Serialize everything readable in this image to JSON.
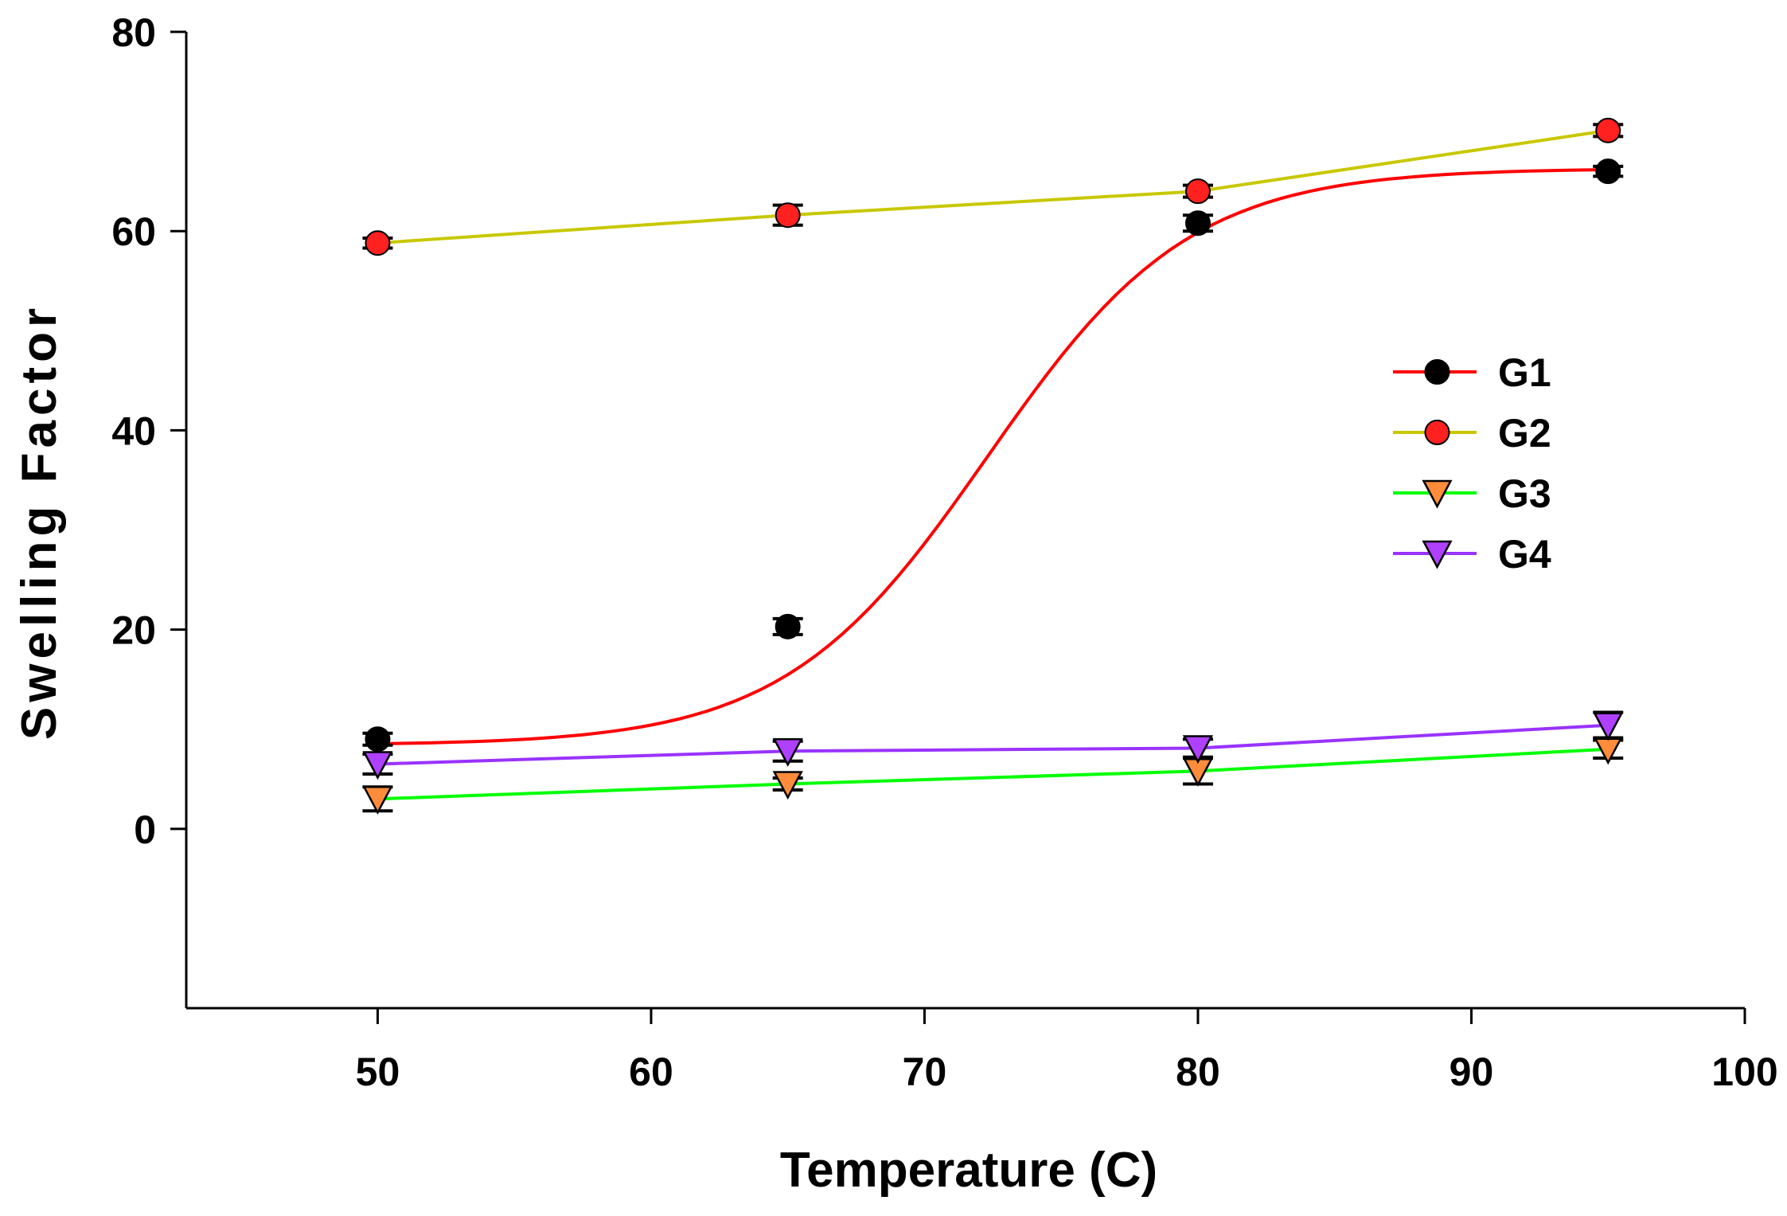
{
  "chart_data": {
    "type": "line",
    "title": "",
    "xlabel": "Temperature (C)",
    "ylabel": "Swelling Factor",
    "xlim": [
      43,
      100
    ],
    "ylim": [
      -18,
      80
    ],
    "x_ticks": [
      50,
      60,
      70,
      80,
      90,
      100
    ],
    "y_ticks": [
      0,
      20,
      40,
      60,
      80
    ],
    "x_tick_labels": [
      "50",
      "60",
      "70",
      "80",
      "90",
      "100"
    ],
    "y_tick_labels": [
      "0",
      "20",
      "40",
      "60",
      "80"
    ],
    "grid": false,
    "legend_position": "right",
    "x": [
      50,
      65,
      80,
      95
    ],
    "series": [
      {
        "name": "G1",
        "values": [
          9,
          20.3,
          60.8,
          66
        ],
        "errors": [
          0.6,
          0.8,
          0.8,
          0.5
        ],
        "line_color": "#ff0000",
        "marker": "circle",
        "marker_fill": "#000000",
        "smooth": "sigmoid"
      },
      {
        "name": "G2",
        "values": [
          58.8,
          61.6,
          64,
          70.1
        ],
        "errors": [
          0.5,
          1.0,
          0.6,
          0.6
        ],
        "line_color": "#c8c800",
        "marker": "circle",
        "marker_fill": "#ff2020",
        "smooth": "linear"
      },
      {
        "name": "G3",
        "values": [
          3,
          4.5,
          5.8,
          8
        ],
        "errors": [
          1.2,
          0.6,
          1.3,
          0.9
        ],
        "line_color": "#00ff00",
        "marker": "triangle-down",
        "marker_fill": "#ff8c3a",
        "smooth": "linear"
      },
      {
        "name": "G4",
        "values": [
          6.5,
          7.8,
          8.1,
          10.4
        ],
        "errors": [
          1.0,
          1.0,
          0.9,
          1.3
        ],
        "line_color": "#9933ff",
        "marker": "triangle-down",
        "marker_fill": "#b040ff",
        "smooth": "linear"
      }
    ]
  }
}
